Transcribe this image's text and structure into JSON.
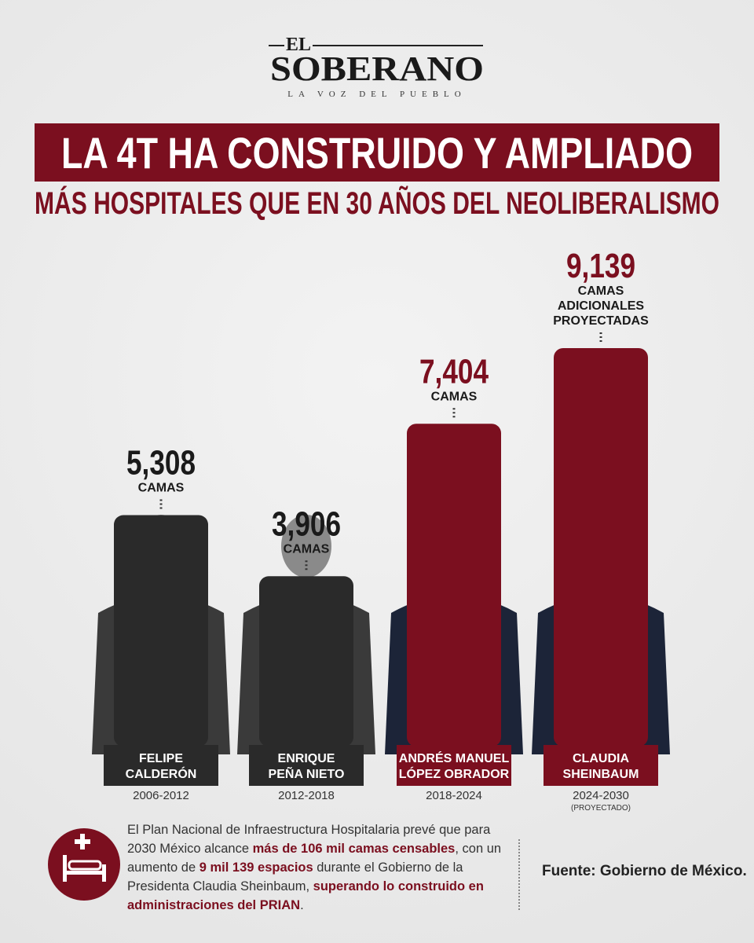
{
  "header": {
    "logo_top": "EL",
    "logo_name": "SOBERANO",
    "logo_tagline": "LA VOZ DEL PUEBLO",
    "title": "LA 4T HA CONSTRUIDO Y AMPLIADO",
    "subtitle": "MÁS HOSPITALES QUE EN 30 AÑOS DEL NEOLIBERALISMO"
  },
  "chart_data": {
    "type": "bar",
    "categories": [
      [
        "FELIPE",
        "CALDERÓN"
      ],
      [
        "ENRIQUE",
        "PEÑA NIETO"
      ],
      [
        "ANDRÉS MANUEL",
        "LÓPEZ OBRADOR"
      ],
      [
        "CLAUDIA",
        "SHEINBAUM"
      ]
    ],
    "periods": [
      "2006-2012",
      "2012-2018",
      "2018-2024",
      "2024-2030"
    ],
    "period_notes": [
      null,
      null,
      null,
      "(PROYECTADO)"
    ],
    "values": [
      5308,
      3906,
      7404,
      9139
    ],
    "value_labels": [
      "5,308",
      "3,906",
      "7,404",
      "9,139"
    ],
    "units": [
      [
        "CAMAS"
      ],
      [
        "CAMAS"
      ],
      [
        "CAMAS"
      ],
      [
        "CAMAS",
        "ADICIONALES",
        "PROYECTADAS"
      ]
    ],
    "colors": [
      "#2a2a2a",
      "#2a2a2a",
      "#7b0f1f",
      "#7b0f1f"
    ]
  },
  "footer": {
    "text": [
      {
        "text": "El Plan Nacional de Infraestructura Hospitalaria prevé que para 2030 México alcance ",
        "em": false
      },
      {
        "text": "más de 106 mil camas censables",
        "em": true
      },
      {
        "text": ", con un aumento de ",
        "em": false
      },
      {
        "text": "9 mil 139 espacios",
        "em": true
      },
      {
        "text": " durante el Gobierno de la Presidenta Claudia Sheinbaum, ",
        "em": false
      },
      {
        "text": "superando lo construido en administraciones del PRIAN",
        "em": true
      },
      {
        "text": ".",
        "em": false
      }
    ],
    "source": "Fuente: Gobierno de México."
  }
}
